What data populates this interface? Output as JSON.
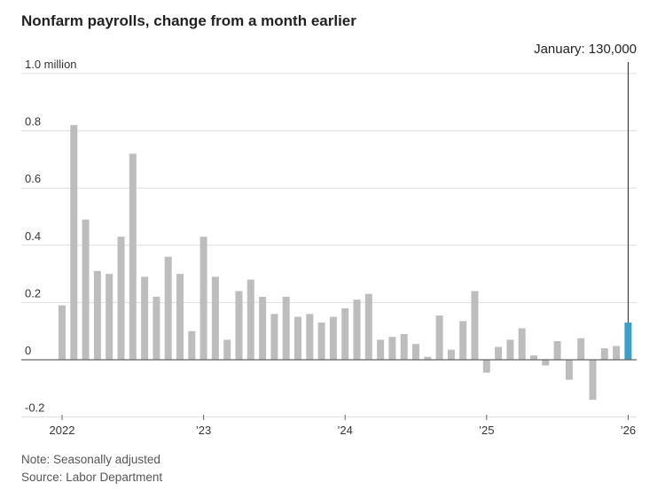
{
  "title": "Nonfarm payrolls, change from a month earlier",
  "callout": "January: 130,000",
  "note": "Note: Seasonally adjusted",
  "source": "Source: Labor Department",
  "colors": {
    "bar": "#bdbdbd",
    "highlight": "#3aa0c4",
    "grid": "#dddddd",
    "zero": "#666666"
  },
  "chart_data": {
    "type": "bar",
    "title": "Nonfarm payrolls, change from a month earlier",
    "unit": "million",
    "ylim": [
      -0.2,
      1.0
    ],
    "yticks": [
      {
        "value": 1.0,
        "label": "1.0 million"
      },
      {
        "value": 0.8,
        "label": "0.8"
      },
      {
        "value": 0.6,
        "label": "0.6"
      },
      {
        "value": 0.4,
        "label": "0.4"
      },
      {
        "value": 0.2,
        "label": "0.2"
      },
      {
        "value": 0,
        "label": "0"
      },
      {
        "value": -0.2,
        "label": "-0.2"
      }
    ],
    "xticks": [
      {
        "index": 0,
        "label": "2022"
      },
      {
        "index": 12,
        "label": "’23"
      },
      {
        "index": 24,
        "label": "’24"
      },
      {
        "index": 36,
        "label": "’25"
      },
      {
        "index": 48,
        "label": "’26"
      }
    ],
    "highlight_index": 48,
    "grid": true,
    "categories": [
      "2022-01",
      "2022-02",
      "2022-03",
      "2022-04",
      "2022-05",
      "2022-06",
      "2022-07",
      "2022-08",
      "2022-09",
      "2022-10",
      "2022-11",
      "2022-12",
      "2023-01",
      "2023-02",
      "2023-03",
      "2023-04",
      "2023-05",
      "2023-06",
      "2023-07",
      "2023-08",
      "2023-09",
      "2023-10",
      "2023-11",
      "2023-12",
      "2024-01",
      "2024-02",
      "2024-03",
      "2024-04",
      "2024-05",
      "2024-06",
      "2024-07",
      "2024-08",
      "2024-09",
      "2024-10",
      "2024-11",
      "2024-12",
      "2025-01",
      "2025-02",
      "2025-03",
      "2025-04",
      "2025-05",
      "2025-06",
      "2025-07",
      "2025-08",
      "2025-09",
      "2025-10",
      "2025-11",
      "2025-12",
      "2026-01"
    ],
    "values": [
      0.19,
      0.82,
      0.49,
      0.31,
      0.3,
      0.43,
      0.72,
      0.29,
      0.22,
      0.36,
      0.3,
      0.1,
      0.43,
      0.29,
      0.07,
      0.24,
      0.28,
      0.22,
      0.16,
      0.22,
      0.15,
      0.16,
      0.13,
      0.15,
      0.18,
      0.21,
      0.23,
      0.07,
      0.08,
      0.09,
      0.055,
      0.01,
      0.155,
      0.035,
      0.135,
      0.24,
      -0.045,
      0.045,
      0.07,
      0.11,
      0.015,
      -0.02,
      0.065,
      -0.07,
      0.075,
      -0.14,
      0.04,
      0.048,
      0.13
    ]
  }
}
